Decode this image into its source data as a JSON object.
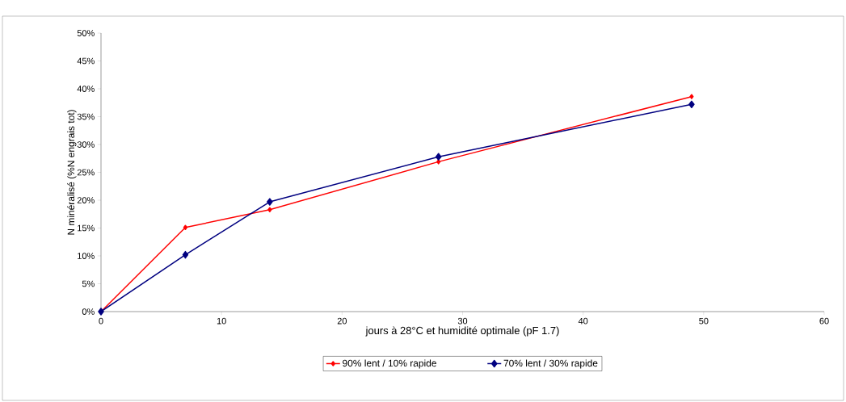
{
  "chart_data": {
    "type": "line",
    "xlabel": "jours à 28°C et humidité optimale (pF 1.7)",
    "ylabel": "N minéralisé (%N engrais tot)",
    "x": [
      0,
      7,
      14,
      28,
      49
    ],
    "series": [
      {
        "name": "90% lent / 10% rapide",
        "color": "#ff0000",
        "values": [
          0,
          15.1,
          18.3,
          26.9,
          38.6
        ]
      },
      {
        "name": "70% lent / 30% rapide",
        "color": "#000080",
        "values": [
          0,
          10.2,
          19.7,
          27.8,
          37.2
        ]
      }
    ],
    "xlim": [
      0,
      60
    ],
    "xticks": [
      0,
      10,
      20,
      30,
      40,
      50,
      60
    ],
    "ylim": [
      0,
      50
    ],
    "yticks": [
      {
        "value": 0,
        "label": "0%"
      },
      {
        "value": 5,
        "label": "5%"
      },
      {
        "value": 10,
        "label": "10%"
      },
      {
        "value": 15,
        "label": "15%"
      },
      {
        "value": 20,
        "label": "20%"
      },
      {
        "value": 25,
        "label": "25%"
      },
      {
        "value": 30,
        "label": "30%"
      },
      {
        "value": 35,
        "label": "35%"
      },
      {
        "value": 40,
        "label": "40%"
      },
      {
        "value": 45,
        "label": "45%"
      },
      {
        "value": 50,
        "label": "50%"
      }
    ],
    "grid": false,
    "legend": "bottom",
    "marker": "diamond",
    "line_style": "solid"
  }
}
